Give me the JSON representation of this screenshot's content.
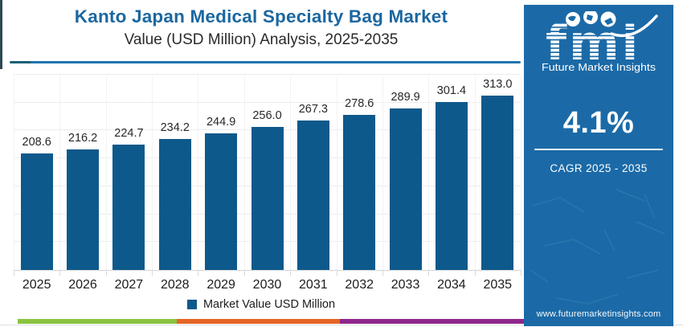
{
  "header": {
    "title": "Kanto Japan Medical Specialty Bag Market",
    "subtitle": "Value (USD Million) Analysis, 2025-2035"
  },
  "chart_data": {
    "type": "bar",
    "title": "Kanto Japan Medical Specialty Bag Market Value (USD Million) Analysis, 2025-2035",
    "categories": [
      "2025",
      "2026",
      "2027",
      "2028",
      "2029",
      "2030",
      "2031",
      "2032",
      "2033",
      "2034",
      "2035"
    ],
    "values": [
      208.6,
      216.2,
      224.7,
      234.2,
      244.9,
      256.0,
      267.3,
      278.6,
      289.9,
      301.4,
      313.0
    ],
    "xlabel": "",
    "ylabel": "",
    "ylim": [
      0,
      350
    ],
    "gridline_step": 50,
    "grid": true,
    "legend_position": "bottom",
    "bar_color": "#0e598b",
    "value_label_decimals": 1
  },
  "legend": {
    "label": "Market Value USD Million",
    "swatch_color": "#0e598b"
  },
  "sidebar": {
    "logo": {
      "text": "fmi",
      "tagline": "Future Market Insights"
    },
    "cagr_value": "4.1%",
    "cagr_label": "CAGR 2025 - 2035",
    "website": "www.futuremarketinsights.com",
    "bg_color": "#1b6aa7"
  },
  "footer_strip": {
    "colors": [
      "#8bc441",
      "#e56527",
      "#8f278c"
    ]
  }
}
